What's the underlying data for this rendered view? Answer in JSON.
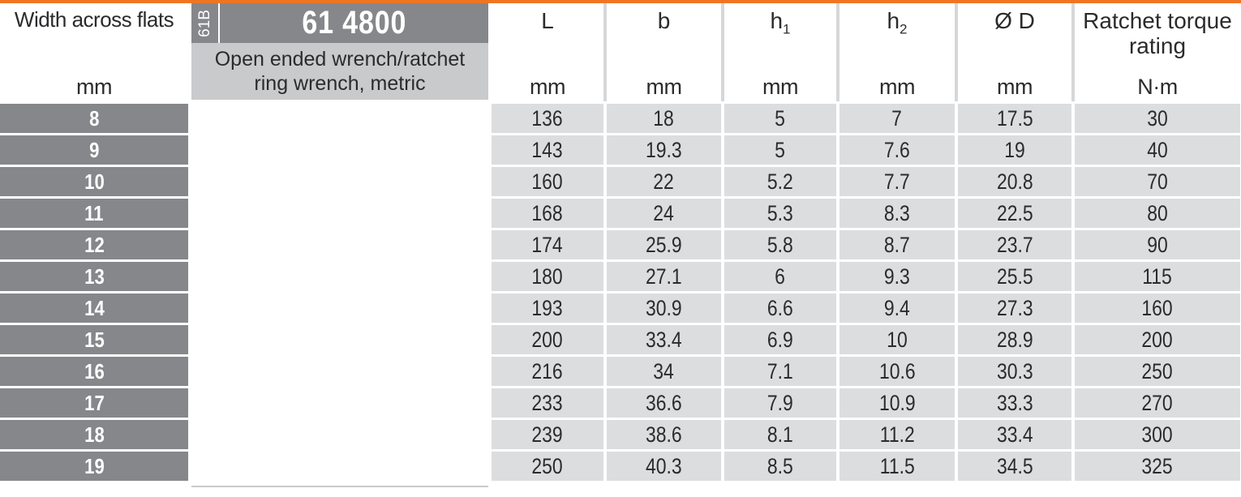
{
  "accent_color": "#ee7623",
  "colors": {
    "dark_gray": "#86878b",
    "light_gray_band": "#c9cacc",
    "cell_gray": "#dcddde"
  },
  "header": {
    "row_label_title": "Width across flats",
    "row_label_unit": "mm",
    "series_code": "61B",
    "product_code": "61 4800",
    "product_description": "Open ended wrench/ratchet ring wrench, metric",
    "columns": [
      {
        "label": "L",
        "sub": "",
        "unit": "mm"
      },
      {
        "label": "b",
        "sub": "",
        "unit": "mm"
      },
      {
        "label": "h",
        "sub": "1",
        "unit": "mm"
      },
      {
        "label": "h",
        "sub": "2",
        "unit": "mm"
      },
      {
        "label": "Ø D",
        "sub": "",
        "unit": "mm"
      },
      {
        "label": "Ratchet torque rating",
        "sub": "",
        "unit": "N·m"
      }
    ]
  },
  "table": {
    "rows": [
      {
        "size": "8",
        "L": "136",
        "b": "18",
        "h1": "5",
        "h2": "7",
        "D": "17.5",
        "torque": "30"
      },
      {
        "size": "9",
        "L": "143",
        "b": "19.3",
        "h1": "5",
        "h2": "7.6",
        "D": "19",
        "torque": "40"
      },
      {
        "size": "10",
        "L": "160",
        "b": "22",
        "h1": "5.2",
        "h2": "7.7",
        "D": "20.8",
        "torque": "70"
      },
      {
        "size": "11",
        "L": "168",
        "b": "24",
        "h1": "5.3",
        "h2": "8.3",
        "D": "22.5",
        "torque": "80"
      },
      {
        "size": "12",
        "L": "174",
        "b": "25.9",
        "h1": "5.8",
        "h2": "8.7",
        "D": "23.7",
        "torque": "90"
      },
      {
        "size": "13",
        "L": "180",
        "b": "27.1",
        "h1": "6",
        "h2": "9.3",
        "D": "25.5",
        "torque": "115"
      },
      {
        "size": "14",
        "L": "193",
        "b": "30.9",
        "h1": "6.6",
        "h2": "9.4",
        "D": "27.3",
        "torque": "160"
      },
      {
        "size": "15",
        "L": "200",
        "b": "33.4",
        "h1": "6.9",
        "h2": "10",
        "D": "28.9",
        "torque": "200"
      },
      {
        "size": "16",
        "L": "216",
        "b": "34",
        "h1": "7.1",
        "h2": "10.6",
        "D": "30.3",
        "torque": "250"
      },
      {
        "size": "17",
        "L": "233",
        "b": "36.6",
        "h1": "7.9",
        "h2": "10.9",
        "D": "33.3",
        "torque": "270"
      },
      {
        "size": "18",
        "L": "239",
        "b": "38.6",
        "h1": "8.1",
        "h2": "11.2",
        "D": "33.4",
        "torque": "300"
      },
      {
        "size": "19",
        "L": "250",
        "b": "40.3",
        "h1": "8.5",
        "h2": "11.5",
        "D": "34.5",
        "torque": "325"
      }
    ]
  }
}
